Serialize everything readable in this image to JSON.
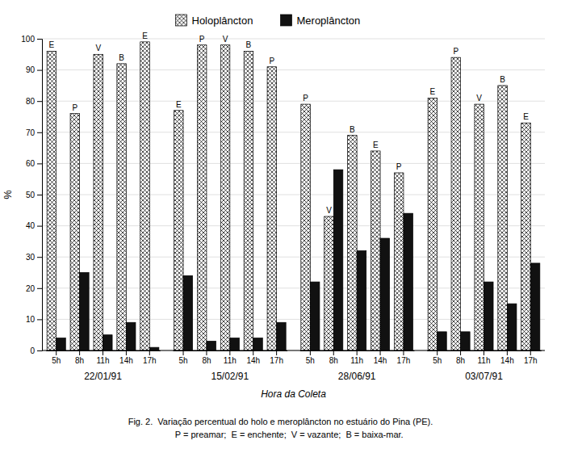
{
  "chart_data": {
    "type": "bar",
    "y_label": "%",
    "x_label": "Hora da Coleta",
    "categories": [
      "5h",
      "8h",
      "11h",
      "14h",
      "17h",
      "5h",
      "8h",
      "11h",
      "14h",
      "17h",
      "5h",
      "8h",
      "11h",
      "14h",
      "17h",
      "5h",
      "8h",
      "11h",
      "14h",
      "17h"
    ],
    "category_groups": [
      "22/01/91",
      "15/02/91",
      "28/06/91",
      "03/07/91"
    ],
    "series": [
      {
        "name": "Holoplâncton",
        "color": "white",
        "values": [
          96,
          76,
          95,
          92,
          99,
          77,
          98,
          98,
          96,
          91,
          79,
          43,
          69,
          64,
          57,
          81,
          94,
          79,
          85,
          73
        ],
        "annotations": [
          "E",
          "P",
          "V",
          "B",
          "E",
          "E",
          "P",
          "V",
          "B",
          "P",
          "P",
          "V",
          "B",
          "E",
          "P",
          "E",
          "P",
          "V",
          "B",
          "E"
        ]
      },
      {
        "name": "Meroplâncton",
        "color": "#111111",
        "values": [
          4,
          25,
          5,
          9,
          1,
          24,
          3,
          4,
          4,
          9,
          22,
          58,
          32,
          36,
          44,
          6,
          6,
          22,
          15,
          28
        ]
      }
    ],
    "ylim": [
      0,
      100
    ],
    "yticks": [
      0,
      10,
      20,
      30,
      40,
      50,
      60,
      70,
      80,
      90,
      100
    ],
    "grid": true,
    "legend": "top",
    "caption": [
      "Fig. 2.  Variação percentual do holo e meroplâncton no estuário do Pina (PE).",
      "       P = preamar;  E = enchente;  V = vazante;  B = baixa-mar."
    ]
  }
}
